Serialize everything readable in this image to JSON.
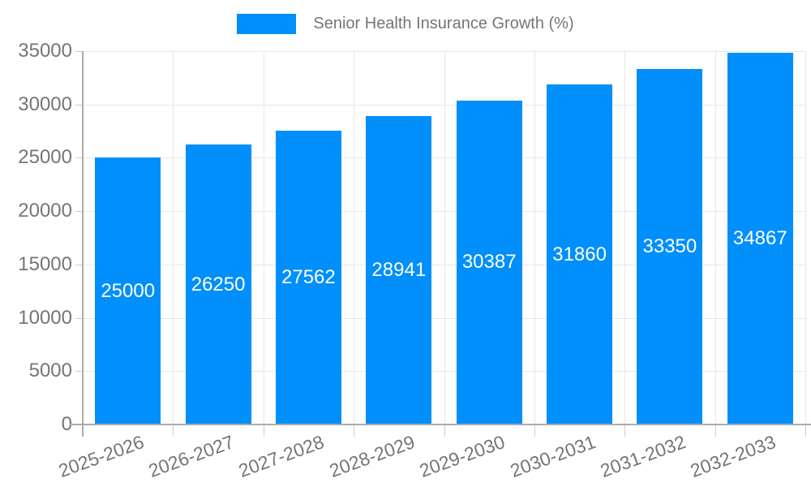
{
  "legend": {
    "label": "Senior Health Insurance Growth (%)",
    "swatch_color": "#008FFB"
  },
  "chart_data": {
    "type": "bar",
    "title": "Senior Health Insurance Growth (%)",
    "series_name": "Senior Health Insurance Growth (%)",
    "categories": [
      "2025-2026",
      "2026-2027",
      "2027-2028",
      "2028-2029",
      "2029-2030",
      "2030-2031",
      "2031-2032",
      "2032-2033"
    ],
    "values": [
      25000,
      26250,
      27562,
      28941,
      30387,
      31860,
      33350,
      34867
    ],
    "data_labels": [
      "25000",
      "26250",
      "27562",
      "28941",
      "30387",
      "31860",
      "33350",
      "34867"
    ],
    "xlabel": "",
    "ylabel": "",
    "ylim": [
      0,
      35000
    ],
    "ytick_step": 5000,
    "yticks": [
      0,
      5000,
      10000,
      15000,
      20000,
      25000,
      30000,
      35000
    ],
    "grid": true,
    "legend_position": "top",
    "x_label_rotation_deg": -20,
    "colors": {
      "bar": "#008FFB",
      "axis_label": "#757575",
      "data_label": "#ffffff",
      "gridline": "#e7e7e7",
      "axis_line": "#ababab",
      "tick": "#cccccc"
    }
  }
}
